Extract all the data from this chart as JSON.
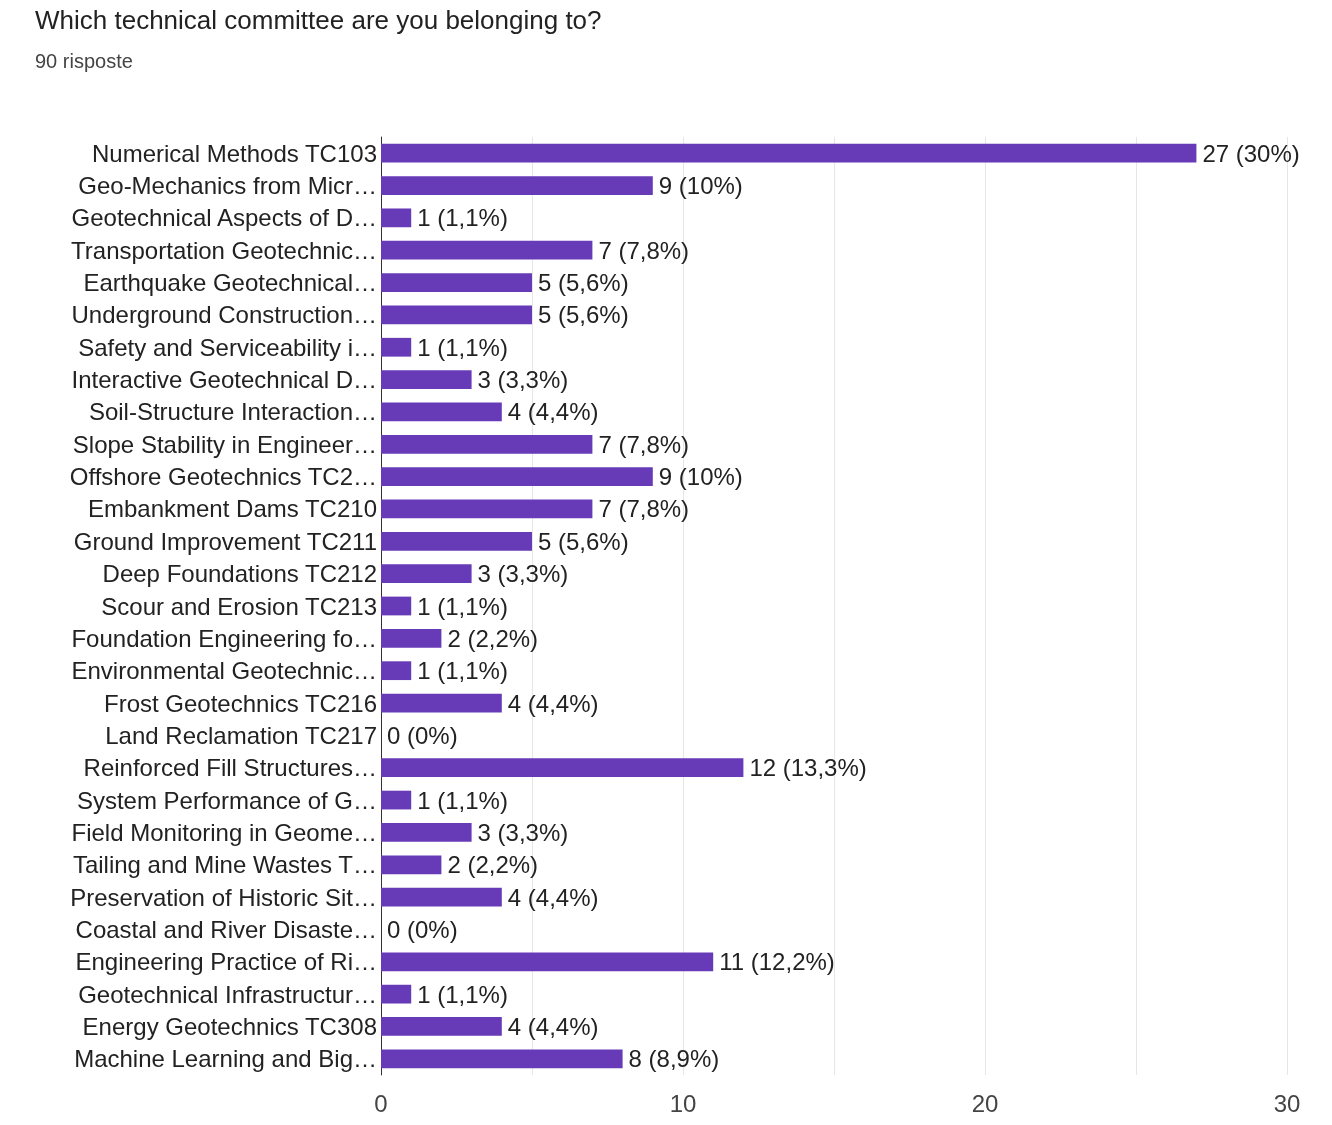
{
  "chart_data": {
    "type": "bar",
    "orientation": "horizontal",
    "title": "Which technical committee are you belonging to?",
    "subtitle": "90 risposte",
    "categories": [
      "Numerical Methods TC103",
      "Geo-Mechanics from Micr…",
      "Geotechnical Aspects of D…",
      "Transportation Geotechnic…",
      "Earthquake Geotechnical…",
      "Underground Construction…",
      "Safety and Serviceability i…",
      "Interactive Geotechnical D…",
      "Soil-Structure Interaction…",
      "Slope Stability in Engineer…",
      "Offshore Geotechnics TC2…",
      "Embankment Dams TC210",
      "Ground Improvement TC211",
      "Deep Foundations TC212",
      "Scour and Erosion TC213",
      "Foundation Engineering fo…",
      "Environmental Geotechnic…",
      "Frost Geotechnics TC216",
      "Land Reclamation TC217",
      "Reinforced Fill Structures…",
      "System Performance of G…",
      "Field Monitoring in Geome…",
      "Tailing and Mine Wastes T…",
      "Preservation of Historic Sit…",
      "Coastal and River Disaste…",
      "Engineering Practice of Ri…",
      "Geotechnical Infrastructur…",
      "Energy Geotechnics TC308",
      "Machine Learning and Big…"
    ],
    "values": [
      27,
      9,
      1,
      7,
      5,
      5,
      1,
      3,
      4,
      7,
      9,
      7,
      5,
      3,
      1,
      2,
      1,
      4,
      0,
      12,
      1,
      3,
      2,
      4,
      0,
      11,
      1,
      4,
      8
    ],
    "value_labels": [
      "27 (30%)",
      "9 (10%)",
      "1 (1,1%)",
      "7 (7,8%)",
      "5 (5,6%)",
      "5 (5,6%)",
      "1 (1,1%)",
      "3 (3,3%)",
      "4 (4,4%)",
      "7 (7,8%)",
      "9 (10%)",
      "7 (7,8%)",
      "5 (5,6%)",
      "3 (3,3%)",
      "1 (1,1%)",
      "2 (2,2%)",
      "1 (1,1%)",
      "4 (4,4%)",
      "0 (0%)",
      "12 (13,3%)",
      "1 (1,1%)",
      "3 (3,3%)",
      "2 (2,2%)",
      "4 (4,4%)",
      "0 (0%)",
      "11 (12,2%)",
      "1 (1,1%)",
      "4 (4,4%)",
      "8 (8,9%)"
    ],
    "color": "#673ab7",
    "xlim": [
      0,
      30
    ],
    "xticks": [
      0,
      {
        "value": 5,
        "label": null
      },
      10,
      {
        "value": 15,
        "label": null
      },
      20,
      {
        "value": 25,
        "label": null
      },
      30
    ],
    "grid": "x"
  }
}
